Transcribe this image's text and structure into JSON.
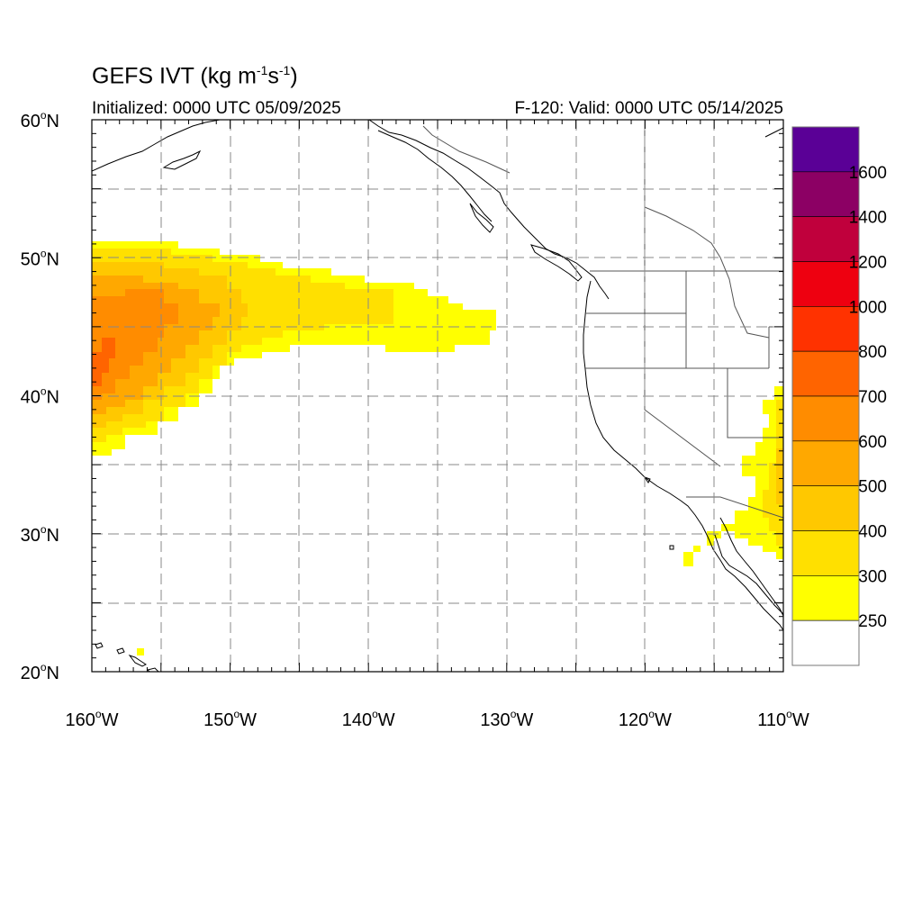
{
  "title": {
    "main": "GEFS IVT (kg m",
    "sup1": "-1",
    "mid": "s",
    "sup2": "-1",
    "end": ")"
  },
  "subtitle_left": "Initialized: 0000 UTC 05/09/2025",
  "subtitle_right": "F-120: Valid: 0000 UTC 05/14/2025",
  "map": {
    "lon_range": [
      -160,
      -110
    ],
    "lat_range": [
      20,
      60
    ],
    "grid": "dashed",
    "x_ticks": [
      {
        "lon": -160,
        "label": "160",
        "suffix": "W"
      },
      {
        "lon": -150,
        "label": "150",
        "suffix": "W"
      },
      {
        "lon": -140,
        "label": "140",
        "suffix": "W"
      },
      {
        "lon": -130,
        "label": "130",
        "suffix": "W"
      },
      {
        "lon": -120,
        "label": "120",
        "suffix": "W"
      },
      {
        "lon": -110,
        "label": "110",
        "suffix": "W"
      }
    ],
    "y_ticks": [
      {
        "lat": 60,
        "label": "60",
        "suffix": "N"
      },
      {
        "lat": 50,
        "label": "50",
        "suffix": "N"
      },
      {
        "lat": 40,
        "label": "40",
        "suffix": "N"
      },
      {
        "lat": 30,
        "label": "30",
        "suffix": "N"
      },
      {
        "lat": 20,
        "label": "20",
        "suffix": "N"
      }
    ],
    "degree_symbol": "o"
  },
  "colorbar": {
    "labels": [
      "1600",
      "1400",
      "1200",
      "1000",
      "800",
      "700",
      "600",
      "500",
      "400",
      "300",
      "250"
    ],
    "colors": [
      "#5a0096",
      "#8c0064",
      "#c0003c",
      "#ee0010",
      "#ff3200",
      "#ff6400",
      "#ff8c00",
      "#ffa800",
      "#ffc800",
      "#ffe000",
      "#ffff00",
      "#ffffff"
    ]
  },
  "ivt_fields": [
    {
      "level": "250",
      "color": "#ffff00"
    },
    {
      "level": "300",
      "color": "#ffe000"
    },
    {
      "level": "400",
      "color": "#ffc800"
    },
    {
      "level": "500",
      "color": "#ffa800"
    },
    {
      "level": "600",
      "color": "#ff8c00"
    },
    {
      "level": "700",
      "color": "#ff6400"
    }
  ]
}
